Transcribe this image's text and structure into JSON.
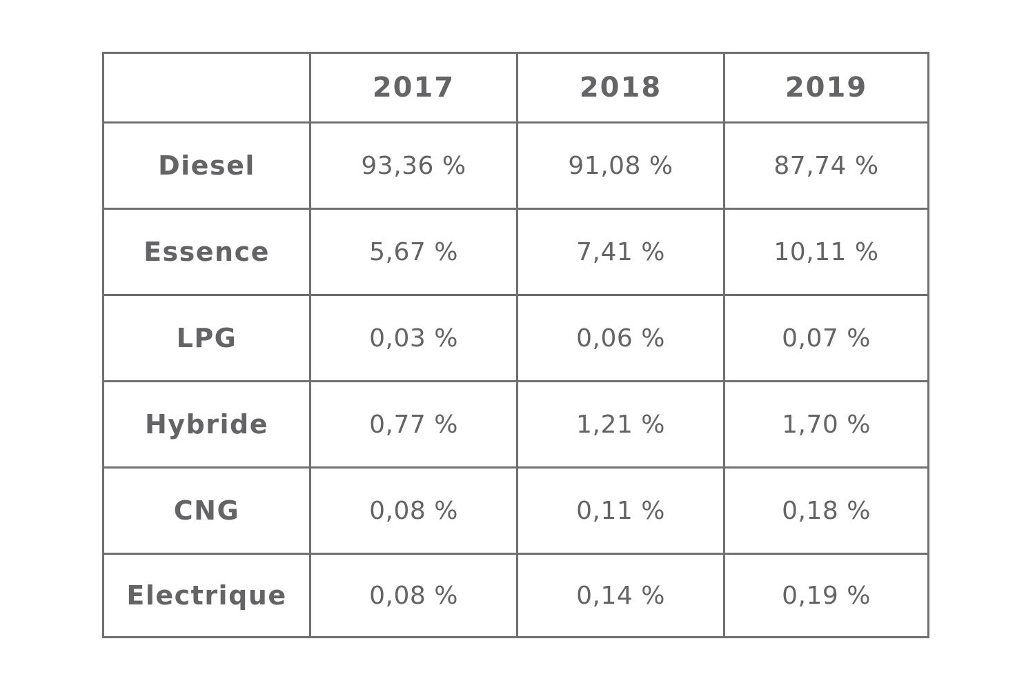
{
  "chart_data": {
    "type": "table",
    "columns": [
      "",
      "2017",
      "2018",
      "2019"
    ],
    "rows": [
      {
        "label": "Diesel",
        "values": [
          "93,36 %",
          "91,08 %",
          "87,74 %"
        ]
      },
      {
        "label": "Essence",
        "values": [
          "5,67 %",
          "7,41 %",
          "10,11 %"
        ]
      },
      {
        "label": "LPG",
        "values": [
          "0,03 %",
          "0,06 %",
          "0,07 %"
        ]
      },
      {
        "label": "Hybride",
        "values": [
          "0,77 %",
          "1,21 %",
          "1,70 %"
        ]
      },
      {
        "label": "CNG",
        "values": [
          "0,08 %",
          "0,11 %",
          "0,18 %"
        ]
      },
      {
        "label": "Electrique",
        "values": [
          "0,08 %",
          "0,14 %",
          "0,19 %"
        ]
      }
    ],
    "grid": true,
    "colors": {
      "border": "#6f6f71",
      "text": "#646466",
      "background": "#ffffff"
    }
  }
}
